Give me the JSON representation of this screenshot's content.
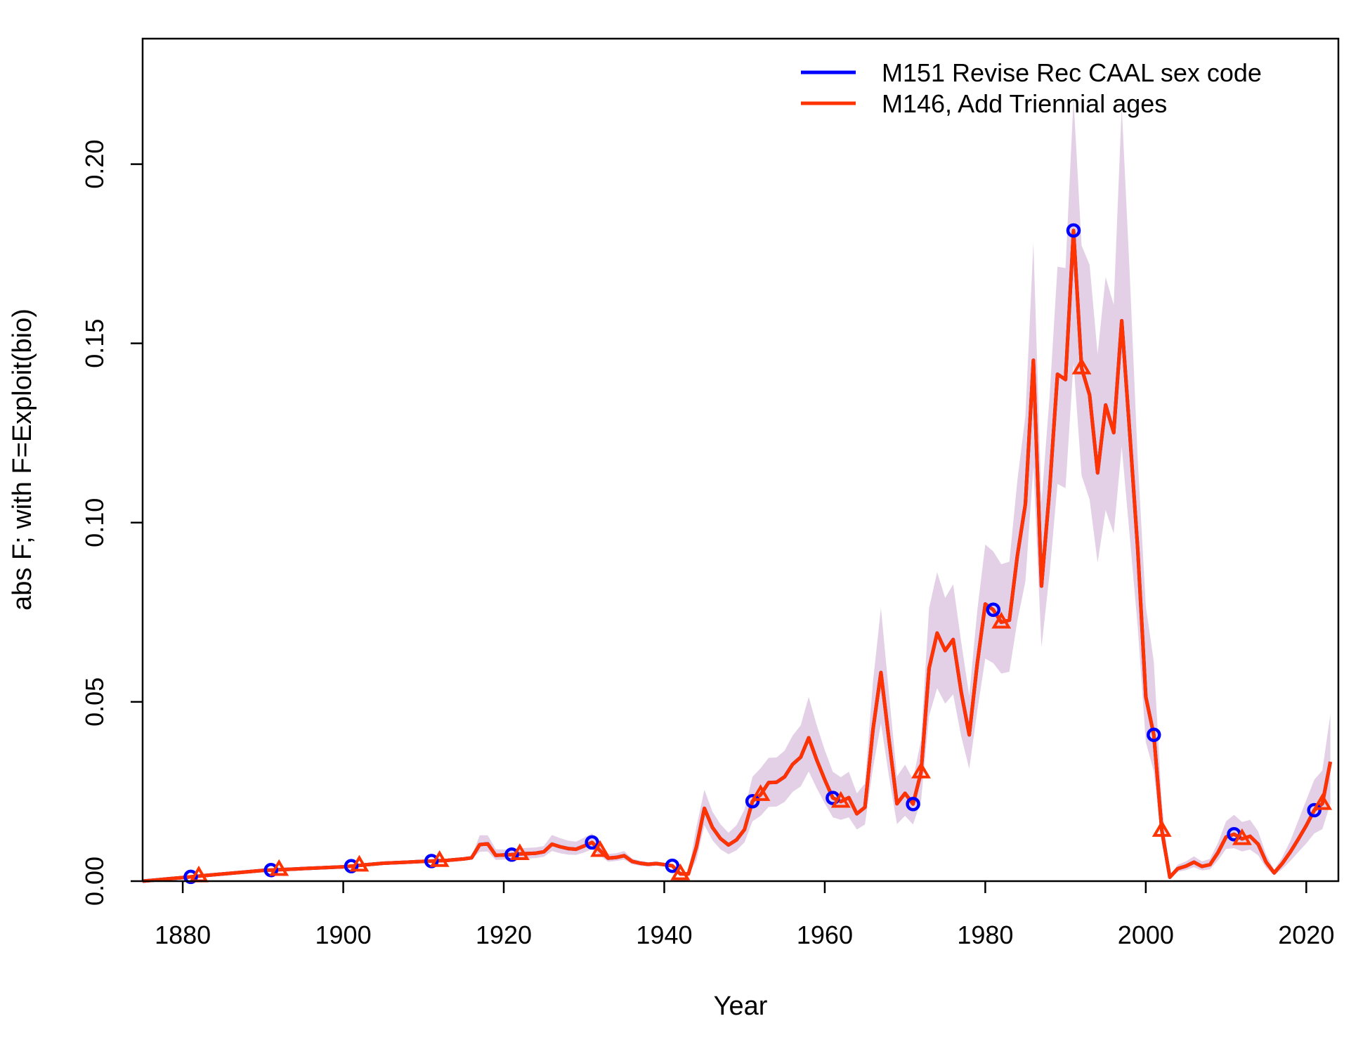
{
  "chart_data": {
    "type": "line",
    "title": "",
    "xlabel": "Year",
    "ylabel": "abs F; with F=Exploit(bio)",
    "xlim": [
      1875,
      2024
    ],
    "ylim": [
      0,
      0.235
    ],
    "x_ticks": [
      1880,
      1900,
      1920,
      1940,
      1960,
      1980,
      2000,
      2020
    ],
    "x_tick_labels": [
      "1880",
      "1900",
      "1920",
      "1940",
      "1960",
      "1980",
      "2000",
      "2020"
    ],
    "y_ticks": [
      0,
      0.05,
      0.1,
      0.15,
      0.2
    ],
    "y_tick_labels": [
      "0.00",
      "0.05",
      "0.10",
      "0.15",
      "0.20"
    ],
    "grid": false,
    "legend_position": "top-right",
    "colors": {
      "band": "#e3d0e6",
      "series1": "#0000ff",
      "series2": "#ff3300"
    },
    "series": [
      {
        "name": "M151 Revise Rec CAAL sex code",
        "color": "#0000ff",
        "marker": "circle",
        "marker_every": 10,
        "marker_offset": 1881,
        "same_as": "M146, Add Triennial ages"
      },
      {
        "name": "M146, Add Triennial ages",
        "color": "#ff3300",
        "marker": "triangle",
        "marker_every": 10,
        "marker_offset": 1882,
        "x": [
          1875,
          1876,
          1877,
          1878,
          1879,
          1880,
          1881,
          1882,
          1883,
          1884,
          1885,
          1886,
          1887,
          1888,
          1889,
          1890,
          1891,
          1892,
          1893,
          1894,
          1895,
          1896,
          1897,
          1898,
          1899,
          1900,
          1901,
          1902,
          1903,
          1904,
          1905,
          1906,
          1907,
          1908,
          1909,
          1910,
          1911,
          1912,
          1913,
          1914,
          1915,
          1916,
          1917,
          1918,
          1919,
          1920,
          1921,
          1922,
          1923,
          1924,
          1925,
          1926,
          1927,
          1928,
          1929,
          1930,
          1931,
          1932,
          1933,
          1934,
          1935,
          1936,
          1937,
          1938,
          1939,
          1940,
          1941,
          1942,
          1943,
          1944,
          1945,
          1946,
          1947,
          1948,
          1949,
          1950,
          1951,
          1952,
          1953,
          1954,
          1955,
          1956,
          1957,
          1958,
          1959,
          1960,
          1961,
          1962,
          1963,
          1964,
          1965,
          1966,
          1967,
          1968,
          1969,
          1970,
          1971,
          1972,
          1973,
          1974,
          1975,
          1976,
          1977,
          1978,
          1979,
          1980,
          1981,
          1982,
          1983,
          1984,
          1985,
          1986,
          1987,
          1988,
          1989,
          1990,
          1991,
          1992,
          1993,
          1994,
          1995,
          1996,
          1997,
          1998,
          1999,
          2000,
          2001,
          2002,
          2003,
          2004,
          2005,
          2006,
          2007,
          2008,
          2009,
          2010,
          2011,
          2012,
          2013,
          2014,
          2015,
          2016,
          2017,
          2018,
          2019,
          2020,
          2021,
          2022,
          2023
        ],
        "y": [
          0,
          0.0002,
          0.0004,
          0.0006,
          0.0008,
          0.001,
          0.0012,
          0.0014,
          0.0016,
          0.0018,
          0.002,
          0.0022,
          0.0024,
          0.0026,
          0.0028,
          0.003,
          0.0031,
          0.0032,
          0.0033,
          0.0034,
          0.0035,
          0.0036,
          0.0037,
          0.0038,
          0.0039,
          0.004,
          0.0042,
          0.0044,
          0.0046,
          0.0048,
          0.005,
          0.0051,
          0.0052,
          0.0053,
          0.0054,
          0.0055,
          0.0056,
          0.0057,
          0.0058,
          0.006,
          0.0062,
          0.0065,
          0.0102,
          0.0104,
          0.0072,
          0.0073,
          0.0074,
          0.0076,
          0.0077,
          0.0078,
          0.0082,
          0.0103,
          0.0096,
          0.0091,
          0.0089,
          0.0098,
          0.0108,
          0.0085,
          0.0064,
          0.0066,
          0.0071,
          0.0055,
          0.005,
          0.0047,
          0.0049,
          0.0046,
          0.0043,
          0.002,
          0.002,
          0.0095,
          0.0203,
          0.015,
          0.0119,
          0.0101,
          0.0115,
          0.0144,
          0.0223,
          0.0241,
          0.0275,
          0.0276,
          0.0291,
          0.0326,
          0.0346,
          0.04,
          0.0338,
          0.0283,
          0.0232,
          0.0222,
          0.0233,
          0.0188,
          0.0206,
          0.0422,
          0.0582,
          0.0395,
          0.0216,
          0.0245,
          0.0215,
          0.0304,
          0.0594,
          0.0692,
          0.0643,
          0.0674,
          0.0528,
          0.0408,
          0.0607,
          0.0773,
          0.0757,
          0.0722,
          0.0728,
          0.0908,
          0.1052,
          0.1453,
          0.0823,
          0.1088,
          0.1414,
          0.1399,
          0.1815,
          0.1431,
          0.1356,
          0.1139,
          0.1328,
          0.1251,
          0.1563,
          0.1251,
          0.0926,
          0.0514,
          0.0408,
          0.0141,
          0.0011,
          0.0035,
          0.0042,
          0.0053,
          0.0041,
          0.0046,
          0.008,
          0.0123,
          0.0131,
          0.0118,
          0.0125,
          0.0103,
          0.0053,
          0.0023,
          0.0049,
          0.0081,
          0.0117,
          0.0155,
          0.0198,
          0.0216,
          0.0333
        ],
        "band_upper": [
          0.0002,
          0.0004,
          0.0006,
          0.0008,
          0.001,
          0.0012,
          0.0014,
          0.0016,
          0.0018,
          0.002,
          0.0022,
          0.0024,
          0.0026,
          0.0028,
          0.003,
          0.0032,
          0.0033,
          0.0034,
          0.0035,
          0.0036,
          0.0037,
          0.0038,
          0.0039,
          0.004,
          0.0041,
          0.0042,
          0.0044,
          0.0046,
          0.0048,
          0.005,
          0.0052,
          0.0053,
          0.0054,
          0.0055,
          0.0056,
          0.0057,
          0.0058,
          0.0059,
          0.006,
          0.0062,
          0.0065,
          0.0069,
          0.0128,
          0.0128,
          0.0089,
          0.0088,
          0.0089,
          0.0092,
          0.0093,
          0.0094,
          0.0098,
          0.0129,
          0.012,
          0.0113,
          0.011,
          0.0121,
          0.0133,
          0.0103,
          0.0076,
          0.0078,
          0.0084,
          0.0063,
          0.0057,
          0.0053,
          0.0055,
          0.0051,
          0.0048,
          0.0025,
          0.0025,
          0.0151,
          0.0255,
          0.0194,
          0.0159,
          0.0135,
          0.0156,
          0.02,
          0.0291,
          0.0315,
          0.0344,
          0.0345,
          0.0364,
          0.0406,
          0.0435,
          0.0514,
          0.0435,
          0.0366,
          0.0305,
          0.029,
          0.0305,
          0.0245,
          0.0272,
          0.0555,
          0.0762,
          0.0524,
          0.0292,
          0.0325,
          0.0284,
          0.0394,
          0.0762,
          0.0862,
          0.079,
          0.0828,
          0.0668,
          0.0517,
          0.0755,
          0.0939,
          0.092,
          0.0884,
          0.0891,
          0.1118,
          0.1298,
          0.178,
          0.1058,
          0.1348,
          0.1714,
          0.171,
          0.2183,
          0.1773,
          0.1719,
          0.147,
          0.1685,
          0.1608,
          0.2161,
          0.1694,
          0.1177,
          0.0767,
          0.0612,
          0.0218,
          0.0017,
          0.0046,
          0.0055,
          0.0069,
          0.0055,
          0.0062,
          0.0107,
          0.0167,
          0.0185,
          0.0165,
          0.0171,
          0.0139,
          0.0074,
          0.0032,
          0.0066,
          0.0112,
          0.0169,
          0.0226,
          0.0283,
          0.0309,
          0.0465
        ],
        "band_lower": [
          0,
          0.0001,
          0.0002,
          0.0004,
          0.0006,
          0.0008,
          0.001,
          0.0012,
          0.0014,
          0.0016,
          0.0018,
          0.002,
          0.0022,
          0.0024,
          0.0026,
          0.0028,
          0.0029,
          0.003,
          0.0031,
          0.0032,
          0.0033,
          0.0034,
          0.0035,
          0.0036,
          0.0037,
          0.0038,
          0.004,
          0.0042,
          0.0044,
          0.0046,
          0.0048,
          0.0049,
          0.005,
          0.0051,
          0.0052,
          0.0053,
          0.0054,
          0.0055,
          0.0056,
          0.0058,
          0.006,
          0.0062,
          0.0082,
          0.0083,
          0.0059,
          0.006,
          0.0061,
          0.0062,
          0.0063,
          0.0064,
          0.0068,
          0.0084,
          0.0078,
          0.0074,
          0.0073,
          0.008,
          0.0089,
          0.0071,
          0.0054,
          0.0056,
          0.006,
          0.0047,
          0.0043,
          0.0041,
          0.0043,
          0.0041,
          0.0038,
          0.0015,
          0.0015,
          0.0059,
          0.0156,
          0.0114,
          0.0089,
          0.0075,
          0.0086,
          0.0108,
          0.0167,
          0.0182,
          0.0207,
          0.0208,
          0.0221,
          0.0249,
          0.0264,
          0.0306,
          0.0259,
          0.0217,
          0.0178,
          0.0171,
          0.0178,
          0.0144,
          0.0158,
          0.0314,
          0.044,
          0.0292,
          0.0159,
          0.0182,
          0.0158,
          0.0225,
          0.0461,
          0.0538,
          0.0495,
          0.0521,
          0.0404,
          0.0313,
          0.0475,
          0.0621,
          0.0608,
          0.0579,
          0.0584,
          0.0726,
          0.0836,
          0.1157,
          0.0652,
          0.0855,
          0.1108,
          0.1096,
          0.1446,
          0.1131,
          0.1064,
          0.0888,
          0.1035,
          0.097,
          0.1212,
          0.0962,
          0.0708,
          0.0388,
          0.0306,
          0.0103,
          0.0008,
          0.0026,
          0.0031,
          0.0039,
          0.003,
          0.0033,
          0.0058,
          0.009,
          0.0092,
          0.0083,
          0.0088,
          0.0072,
          0.0037,
          0.0016,
          0.0034,
          0.0056,
          0.0081,
          0.0105,
          0.0133,
          0.0145,
          0.0216
        ]
      }
    ]
  }
}
